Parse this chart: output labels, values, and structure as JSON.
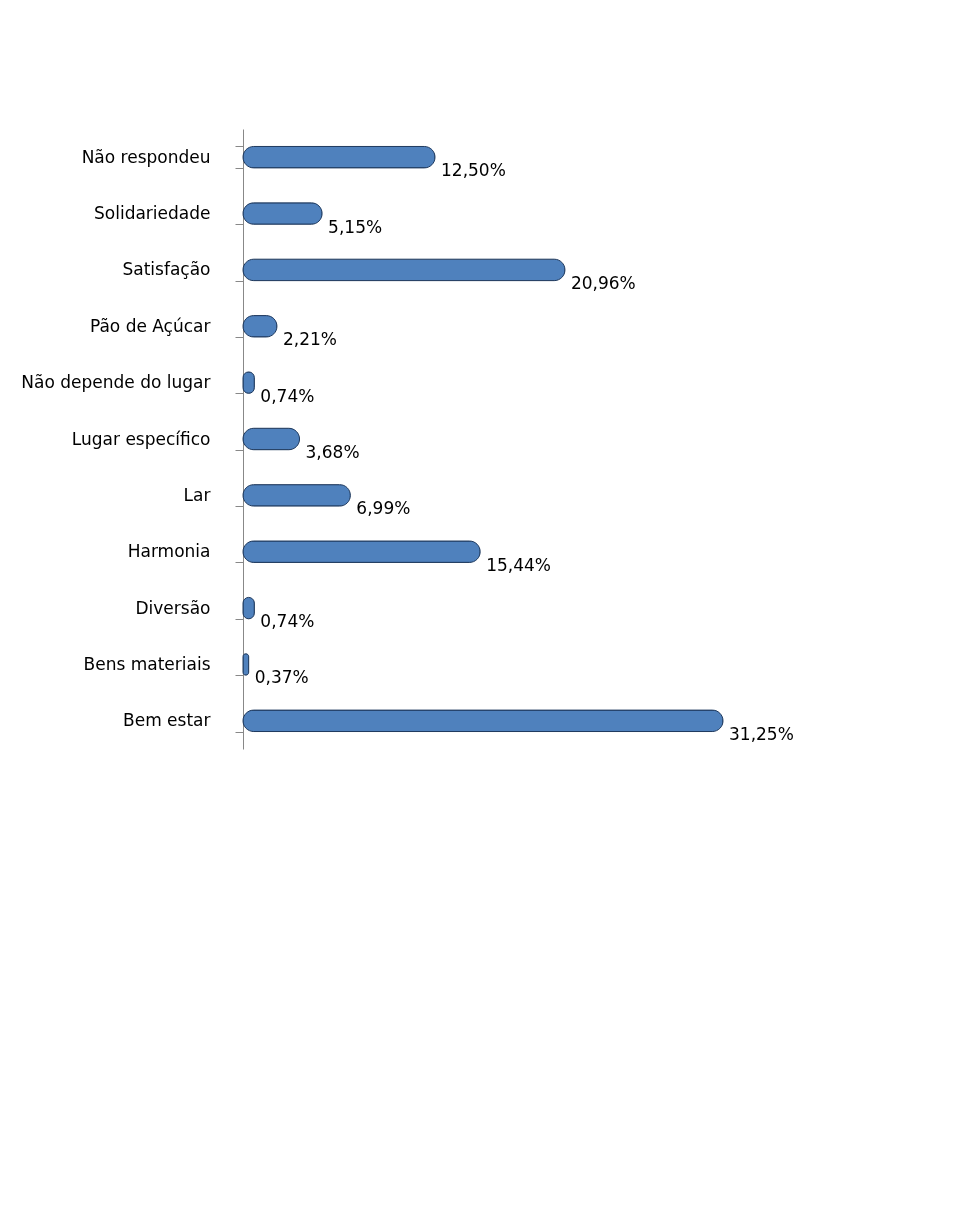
{
  "chart_data": {
    "type": "bar",
    "orientation": "horizontal",
    "categories": [
      "Não respondeu",
      "Solidariedade",
      "Satisfação",
      "Pão de Açúcar",
      "Não depende do lugar",
      "Lugar específico",
      "Lar",
      "Harmonia",
      "Diversão",
      "Bens materiais",
      "Bem estar"
    ],
    "values": [
      12.5,
      5.15,
      20.96,
      2.21,
      0.74,
      3.68,
      6.99,
      15.44,
      0.74,
      0.37,
      31.25
    ],
    "value_labels": [
      "12,50%",
      "5,15%",
      "20,96%",
      "2,21%",
      "0,74%",
      "3,68%",
      "6,99%",
      "15,44%",
      "0,74%",
      "0,37%",
      "31,25%"
    ],
    "color": "#4f81bd",
    "grid": false
  }
}
